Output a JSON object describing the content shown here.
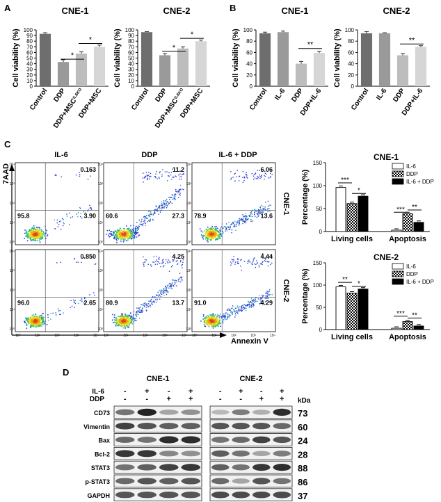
{
  "panels": {
    "A": "A",
    "B": "B",
    "C": "C",
    "D": "D"
  },
  "colors": {
    "dark": "#6e6e6e",
    "mid": "#9a9a9a",
    "light": "#bdbdbd",
    "lighter": "#d6d6d6",
    "ink": "#000000"
  },
  "bar_charts": [
    {
      "id": "A1",
      "title": "CNE-1",
      "ylabel": "Cell viability (%)",
      "yticks": [
        "0",
        "10",
        "20",
        "30",
        "40",
        "50",
        "60",
        "70",
        "80",
        "90",
        "100"
      ],
      "categories": [
        "Control",
        "DDP",
        "DDP+MSC",
        "DDP+MSC"
      ],
      "cat_sup": [
        "",
        "",
        "IL6KO",
        ""
      ],
      "values": [
        93,
        43,
        58,
        70
      ],
      "errors": [
        2,
        4,
        3,
        3
      ],
      "sig": [
        {
          "from": 1,
          "to": 2,
          "label": "*",
          "y": 48
        },
        {
          "from": 2,
          "to": 3,
          "label": "*",
          "y": 76
        }
      ]
    },
    {
      "id": "A2",
      "title": "CNE-2",
      "ylabel": "Cell viability (%)",
      "yticks": [
        "0",
        "10",
        "20",
        "30",
        "40",
        "50",
        "60",
        "70",
        "80",
        "90",
        "100"
      ],
      "categories": [
        "Control",
        "DDP",
        "DDP+MSC",
        "DDP+MSC"
      ],
      "cat_sup": [
        "",
        "",
        "IL6KO",
        ""
      ],
      "values": [
        96,
        55,
        67,
        80
      ],
      "errors": [
        1,
        3,
        3,
        2
      ],
      "sig": [
        {
          "from": 1,
          "to": 2,
          "label": "*",
          "y": 62
        },
        {
          "from": 2,
          "to": 3,
          "label": "*",
          "y": 85
        }
      ]
    },
    {
      "id": "B1",
      "title": "CNE-1",
      "ylabel": "Cell viability (%)",
      "yticks": [
        "0",
        "20",
        "40",
        "60",
        "80",
        "100"
      ],
      "categories": [
        "Control",
        "IL-6",
        "DDP",
        "DDP+IL-6"
      ],
      "cat_sup": [
        "",
        "",
        "",
        ""
      ],
      "values": [
        94,
        96,
        40,
        59
      ],
      "errors": [
        2,
        2,
        4,
        3
      ],
      "sig": [
        {
          "from": 2,
          "to": 3,
          "label": "**",
          "y": 67
        }
      ]
    },
    {
      "id": "B2",
      "title": "CNE-2",
      "ylabel": "Cell viability (%)",
      "yticks": [
        "0",
        "20",
        "40",
        "60",
        "80",
        "100"
      ],
      "categories": [
        "Control",
        "IL-6",
        "DDP",
        "DDP+IL-6"
      ],
      "cat_sup": [
        "",
        "",
        "",
        ""
      ],
      "values": [
        94,
        94,
        55,
        70
      ],
      "errors": [
        3,
        1,
        3,
        2
      ],
      "sig": [
        {
          "from": 2,
          "to": 3,
          "label": "**",
          "y": 75
        }
      ]
    }
  ],
  "flow": {
    "columns": [
      "IL-6",
      "DDP",
      "IL-6 + DDP"
    ],
    "rows": [
      "CNE-1",
      "CNE-2"
    ],
    "ylabel": "7AAD",
    "xlabel": "Annexin V",
    "ticks": [
      "10⁰",
      "10¹",
      "10²",
      "10³",
      "10⁴"
    ],
    "quadrants": [
      [
        "0.163",
        "95.8",
        "3.90"
      ],
      [
        "11.2",
        "60.6",
        "27.3"
      ],
      [
        "6.06",
        "78.9",
        "13.6"
      ],
      [
        "0.850",
        "96.0",
        "2.65"
      ],
      [
        "4.25",
        "80.9",
        "13.7"
      ],
      [
        "4.44",
        "91.0",
        "4.29"
      ]
    ]
  },
  "percentage_charts": [
    {
      "title": "CNE-1",
      "ylabel": "Percentage (%)",
      "yticks": [
        "0",
        "50",
        "100",
        "150"
      ],
      "groups": [
        "Living cells",
        "Apoptosis"
      ],
      "legend": [
        "IL-6",
        "DDP",
        "IL-6 + DDP"
      ],
      "values": [
        [
          96,
          61,
          77
        ],
        [
          3,
          39,
          20
        ]
      ],
      "sig": [
        [
          "***",
          "*"
        ],
        [
          "***",
          "**"
        ]
      ]
    },
    {
      "title": "CNE-2",
      "ylabel": "Percentage (%)",
      "yticks": [
        "0",
        "50",
        "100",
        "150"
      ],
      "groups": [
        "Living cells",
        "Apoptosis"
      ],
      "legend": [
        "IL-6",
        "DDP",
        "IL-6 + DDP"
      ],
      "values": [
        [
          96,
          82,
          91
        ],
        [
          3,
          18,
          8
        ]
      ],
      "sig": [
        [
          "**",
          "*"
        ],
        [
          "***",
          "**"
        ]
      ]
    }
  ],
  "western": {
    "cells": [
      "CNE-1",
      "CNE-2"
    ],
    "il6_label": "IL-6",
    "ddp_label": "DDP",
    "il6": [
      "-",
      "+",
      "-",
      "+"
    ],
    "ddp": [
      "-",
      "-",
      "+",
      "+"
    ],
    "kda_label": "kDa",
    "proteins": [
      "CD73",
      "Vimentin",
      "Bax",
      "Bcl-2",
      "STAT3",
      "p-STAT3",
      "GAPDH"
    ],
    "kda": [
      "73",
      "60",
      "24",
      "28",
      "88",
      "86",
      "37"
    ],
    "intensity": [
      [
        [
          0.6,
          1.0,
          0.35,
          0.45
        ],
        [
          0.25,
          0.55,
          0.3,
          0.95
        ]
      ],
      [
        [
          0.85,
          0.75,
          0.7,
          0.7
        ],
        [
          0.75,
          0.75,
          0.75,
          0.65
        ]
      ],
      [
        [
          0.65,
          0.6,
          0.95,
          0.95
        ],
        [
          0.6,
          0.65,
          0.85,
          0.75
        ]
      ],
      [
        [
          0.9,
          0.9,
          0.5,
          0.45
        ],
        [
          0.7,
          0.6,
          0.35,
          0.55
        ]
      ],
      [
        [
          0.6,
          0.7,
          0.85,
          0.9
        ],
        [
          0.7,
          0.6,
          0.9,
          0.95
        ]
      ],
      [
        [
          0.65,
          0.75,
          0.7,
          0.75
        ],
        [
          0.65,
          0.35,
          0.75,
          0.6
        ]
      ],
      [
        [
          0.75,
          0.75,
          0.75,
          0.75
        ],
        [
          0.8,
          0.8,
          0.8,
          0.8
        ]
      ]
    ]
  }
}
